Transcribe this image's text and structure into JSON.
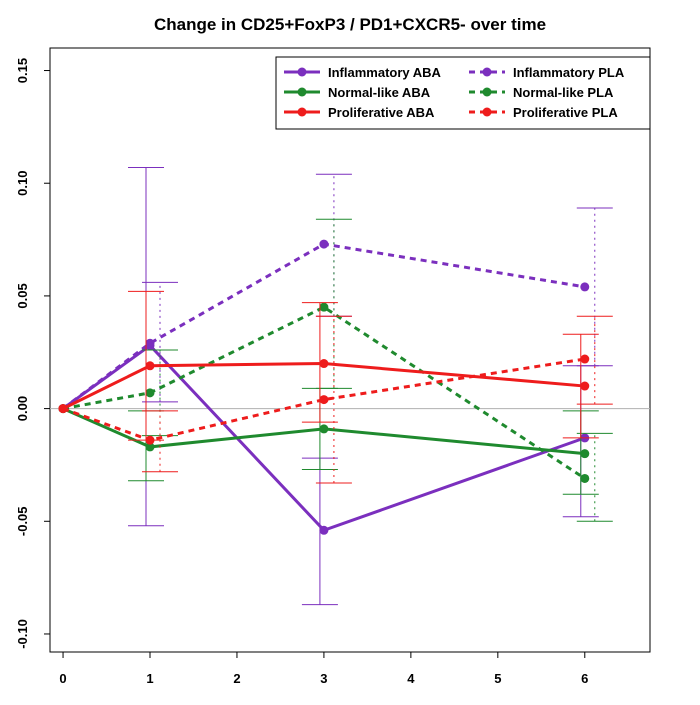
{
  "chart_data": {
    "type": "line",
    "title": "Change in CD25+FoxP3 / PD1+CXCR5- over time",
    "xlabel": "",
    "ylabel": "",
    "x": [
      0,
      1,
      3,
      6
    ],
    "xlim": [
      -0.15,
      6.75
    ],
    "ylim": [
      -0.108,
      0.16
    ],
    "xticks": [
      "0",
      "1",
      "2",
      "3",
      "4",
      "5",
      "6"
    ],
    "yticks": [
      "-0.10",
      "-0.05",
      "0.00",
      "0.05",
      "0.10",
      "0.15"
    ],
    "reference_line_y": 0,
    "legend_position": "top-right",
    "series": [
      {
        "name": "Inflammatory ABA",
        "color": "#7b2fbe",
        "dash": false,
        "values": [
          0,
          0.028,
          -0.054,
          -0.013
        ],
        "err_low": [
          0,
          -0.052,
          -0.087,
          -0.048
        ],
        "err_high": [
          0,
          0.107,
          -0.022,
          0.019
        ]
      },
      {
        "name": "Inflammatory PLA",
        "color": "#7b2fbe",
        "dash": true,
        "values": [
          0,
          0.029,
          0.073,
          0.054
        ],
        "err_low": [
          0,
          0.003,
          0.041,
          0.019
        ],
        "err_high": [
          0,
          0.056,
          0.104,
          0.089
        ]
      },
      {
        "name": "Normal-like ABA",
        "color": "#1f8a2e",
        "dash": false,
        "values": [
          0,
          -0.017,
          -0.009,
          -0.02
        ],
        "err_low": [
          0,
          -0.032,
          -0.027,
          -0.038
        ],
        "err_high": [
          0,
          -0.001,
          0.009,
          -0.001
        ]
      },
      {
        "name": "Normal-like PLA",
        "color": "#1f8a2e",
        "dash": true,
        "values": [
          0,
          0.007,
          0.045,
          -0.031
        ],
        "err_low": [
          0,
          -0.012,
          0.009,
          -0.05
        ],
        "err_high": [
          0,
          0.026,
          0.084,
          -0.011
        ]
      },
      {
        "name": "Proliferative ABA",
        "color": "#ee1c1c",
        "dash": false,
        "values": [
          0,
          0.019,
          0.02,
          0.01
        ],
        "err_low": [
          0,
          -0.014,
          -0.006,
          -0.013
        ],
        "err_high": [
          0,
          0.052,
          0.047,
          0.033
        ]
      },
      {
        "name": "Proliferative PLA",
        "color": "#ee1c1c",
        "dash": true,
        "values": [
          0,
          -0.014,
          0.004,
          0.022
        ],
        "err_low": [
          0,
          -0.028,
          -0.033,
          0.002
        ],
        "err_high": [
          0,
          -0.001,
          0.041,
          0.041
        ]
      }
    ],
    "legend_order": [
      0,
      1,
      2,
      3,
      4,
      5
    ]
  }
}
